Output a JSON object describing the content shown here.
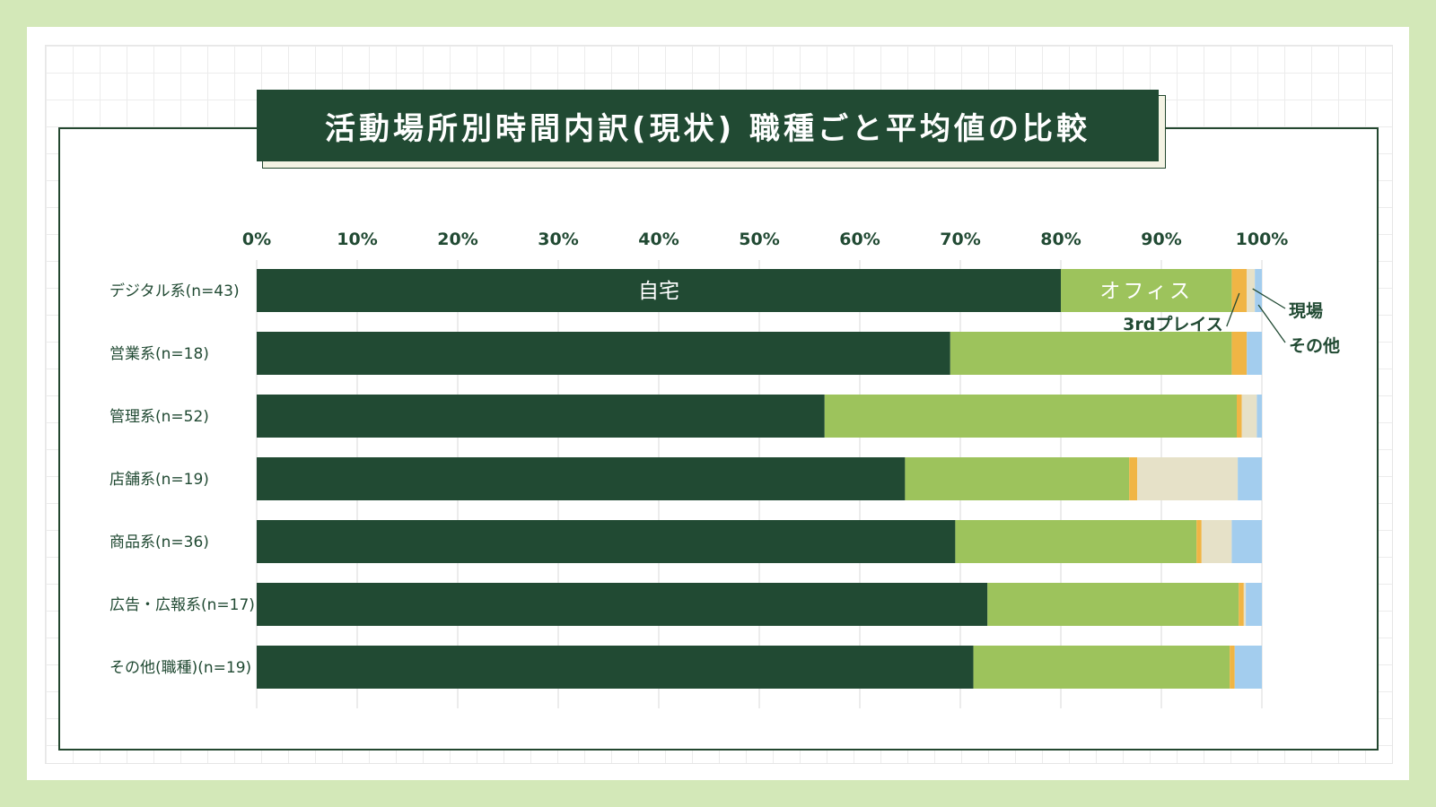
{
  "title": "活動場所別時間内訳(現状) 職種ごと平均値の比較",
  "chart_data": {
    "type": "bar",
    "orientation": "horizontal",
    "stacked": true,
    "xlim": [
      0,
      100
    ],
    "x_ticks": [
      "0%",
      "10%",
      "20%",
      "30%",
      "40%",
      "50%",
      "60%",
      "70%",
      "80%",
      "90%",
      "100%"
    ],
    "categories": [
      "デジタル系(n=43)",
      "営業系(n=18)",
      "管理系(n=52)",
      "店舗系(n=19)",
      "商品系(n=36)",
      "広告・広報系(n=17)",
      "その他(職種)(n=19)"
    ],
    "series": [
      {
        "name": "自宅",
        "color": "#214a33",
        "values": [
          80,
          69,
          56.5,
          64.5,
          69.5,
          72.7,
          71.3
        ]
      },
      {
        "name": "オフィス",
        "color": "#9dc35c",
        "values": [
          17,
          28,
          41,
          22.3,
          24,
          25,
          25.5
        ]
      },
      {
        "name": "3rdプレイス",
        "color": "#f0b545",
        "values": [
          1.5,
          1.5,
          0.5,
          0.8,
          0.5,
          0.5,
          0.5
        ]
      },
      {
        "name": "現場",
        "color": "#e6e1c8",
        "values": [
          0.8,
          0,
          1.5,
          10,
          3,
          0.2,
          0
        ]
      },
      {
        "name": "その他",
        "color": "#a3cdee",
        "values": [
          0.7,
          1.5,
          0.5,
          2.4,
          3,
          1.6,
          2.7
        ]
      }
    ],
    "legend_placement": "inline-first-bar",
    "grid": true
  }
}
